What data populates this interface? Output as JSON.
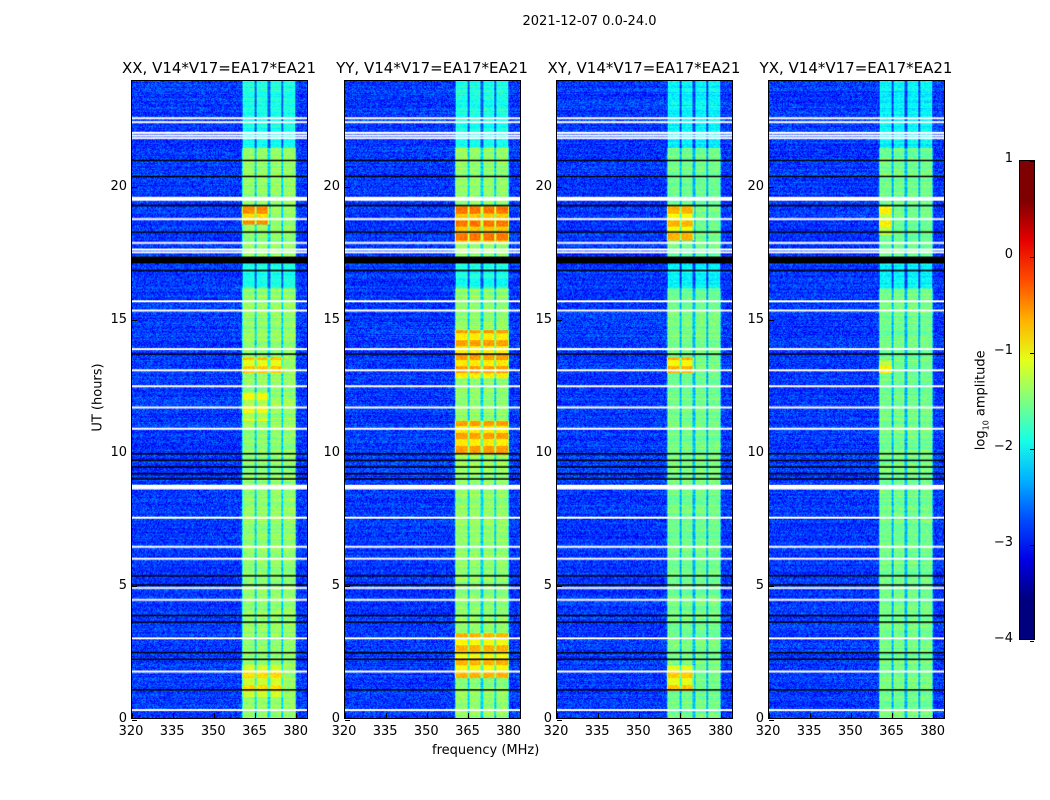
{
  "chart_data": {
    "type": "heatmap",
    "title": "2021-12-07 0.0-24.0",
    "xlabel": "frequency (MHz)",
    "ylabel": "UT (hours)",
    "xlim": [
      320,
      384.5
    ],
    "ylim": [
      0,
      24
    ],
    "xticks": [
      320,
      335,
      350,
      365,
      380
    ],
    "yticks": [
      0,
      5,
      10,
      15,
      20
    ],
    "colormap": "jet",
    "colorbar": {
      "label_main": "log",
      "label_sub": "10",
      "label_rest": " amplitude",
      "range": [
        -4,
        1
      ],
      "ticks": [
        1,
        0,
        -1,
        -2,
        -3,
        -4
      ]
    },
    "panels": [
      {
        "title": "XX, V14*V17=EA17*EA21",
        "hot": [
          [
            18.6,
            19.3,
            360.5,
            370.5,
            -0.3
          ],
          [
            13.0,
            13.6,
            360.5,
            376,
            -0.6
          ],
          [
            0.8,
            2.0,
            360.5,
            376,
            -0.7
          ],
          [
            11.2,
            12.3,
            360.5,
            370.5,
            -0.9
          ]
        ]
      },
      {
        "title": "YY, V14*V17=EA17*EA21",
        "hot": [
          [
            17.9,
            19.3,
            360.5,
            380.5,
            -0.2
          ],
          [
            12.8,
            14.6,
            360.5,
            380.5,
            -0.4
          ],
          [
            9.9,
            11.2,
            360.5,
            380.5,
            -0.4
          ],
          [
            1.5,
            3.2,
            360.5,
            380.5,
            -0.5
          ]
        ]
      },
      {
        "title": "XY, V14*V17=EA17*EA21",
        "hot": [
          [
            18.0,
            19.3,
            360.5,
            370.5,
            -0.5
          ],
          [
            13.0,
            13.6,
            360.5,
            370.5,
            -0.5
          ],
          [
            1.0,
            2.0,
            360.5,
            370.5,
            -0.6
          ]
        ]
      },
      {
        "title": "YX, V14*V17=EA17*EA21",
        "hot": [
          [
            18.2,
            19.3,
            360.5,
            365.5,
            -0.8
          ],
          [
            13.0,
            13.5,
            360.5,
            365.5,
            -0.8
          ]
        ]
      }
    ],
    "band": {
      "active_MHz": [
        360.5,
        380.5
      ],
      "subband_edges_MHz": [
        360.5,
        365.5,
        370.5,
        375.5,
        380.5
      ],
      "active_level": -1.4,
      "background_level": -3.1
    },
    "flagged_white_UT": [
      22.6,
      22.45,
      22.05,
      21.95,
      21.85,
      19.6,
      19.55,
      18.8,
      17.9,
      17.65,
      17.55,
      15.7,
      15.35,
      13.9,
      13.1,
      12.5,
      11.7,
      10.9,
      8.75,
      8.65,
      7.55,
      6.45,
      6.0,
      4.9,
      4.45,
      3.0,
      1.75,
      0.3
    ],
    "flagged_black_UT": [
      21.0,
      20.4,
      19.3,
      18.3,
      17.35,
      17.3,
      17.25,
      17.2,
      16.85,
      13.7,
      9.95,
      9.7,
      9.45,
      9.2,
      9.0,
      5.35,
      5.0,
      3.85,
      3.6,
      2.45,
      2.2,
      1.05
    ]
  }
}
